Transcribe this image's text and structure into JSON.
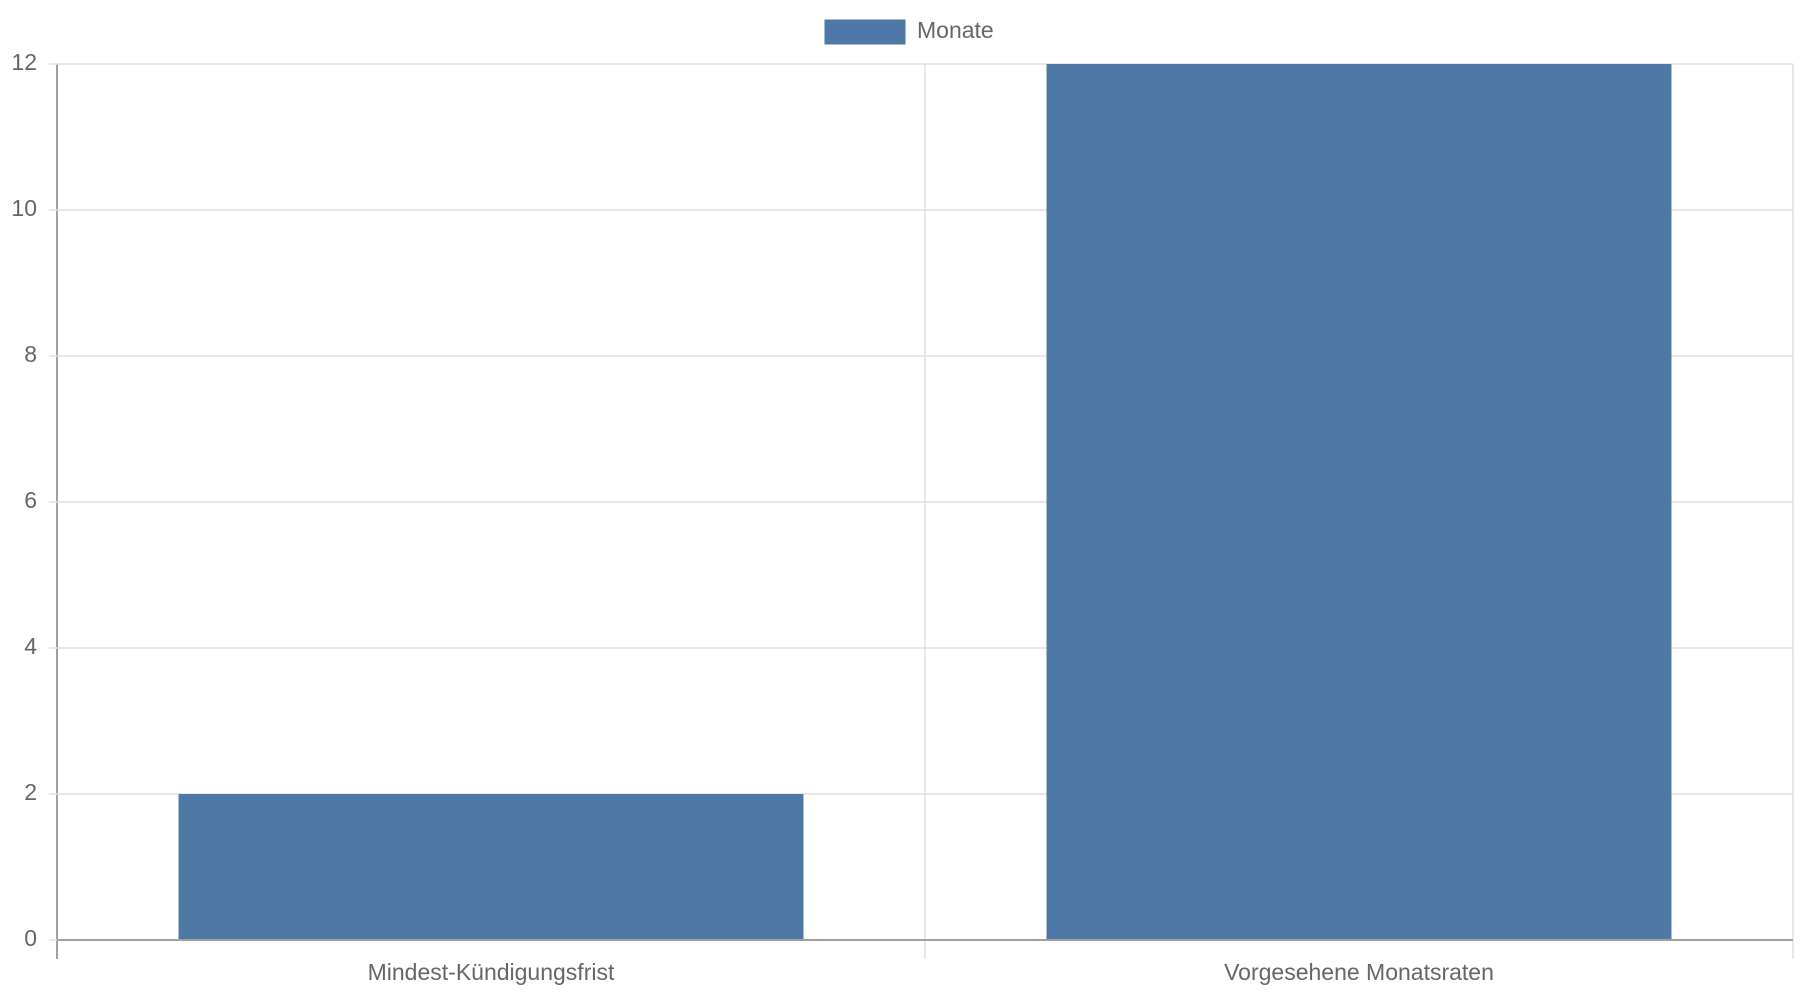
{
  "chart_data": {
    "type": "bar",
    "categories": [
      "Mindest-Kündigungsfrist",
      "Vorgesehene Monatsraten"
    ],
    "series": [
      {
        "name": "Monate",
        "color": "#4e78a5",
        "values": [
          2,
          12
        ]
      }
    ],
    "ylim": [
      0,
      12
    ],
    "yticks": [
      0,
      2,
      4,
      6,
      8,
      10,
      12
    ],
    "grid": true,
    "legend": "top"
  }
}
